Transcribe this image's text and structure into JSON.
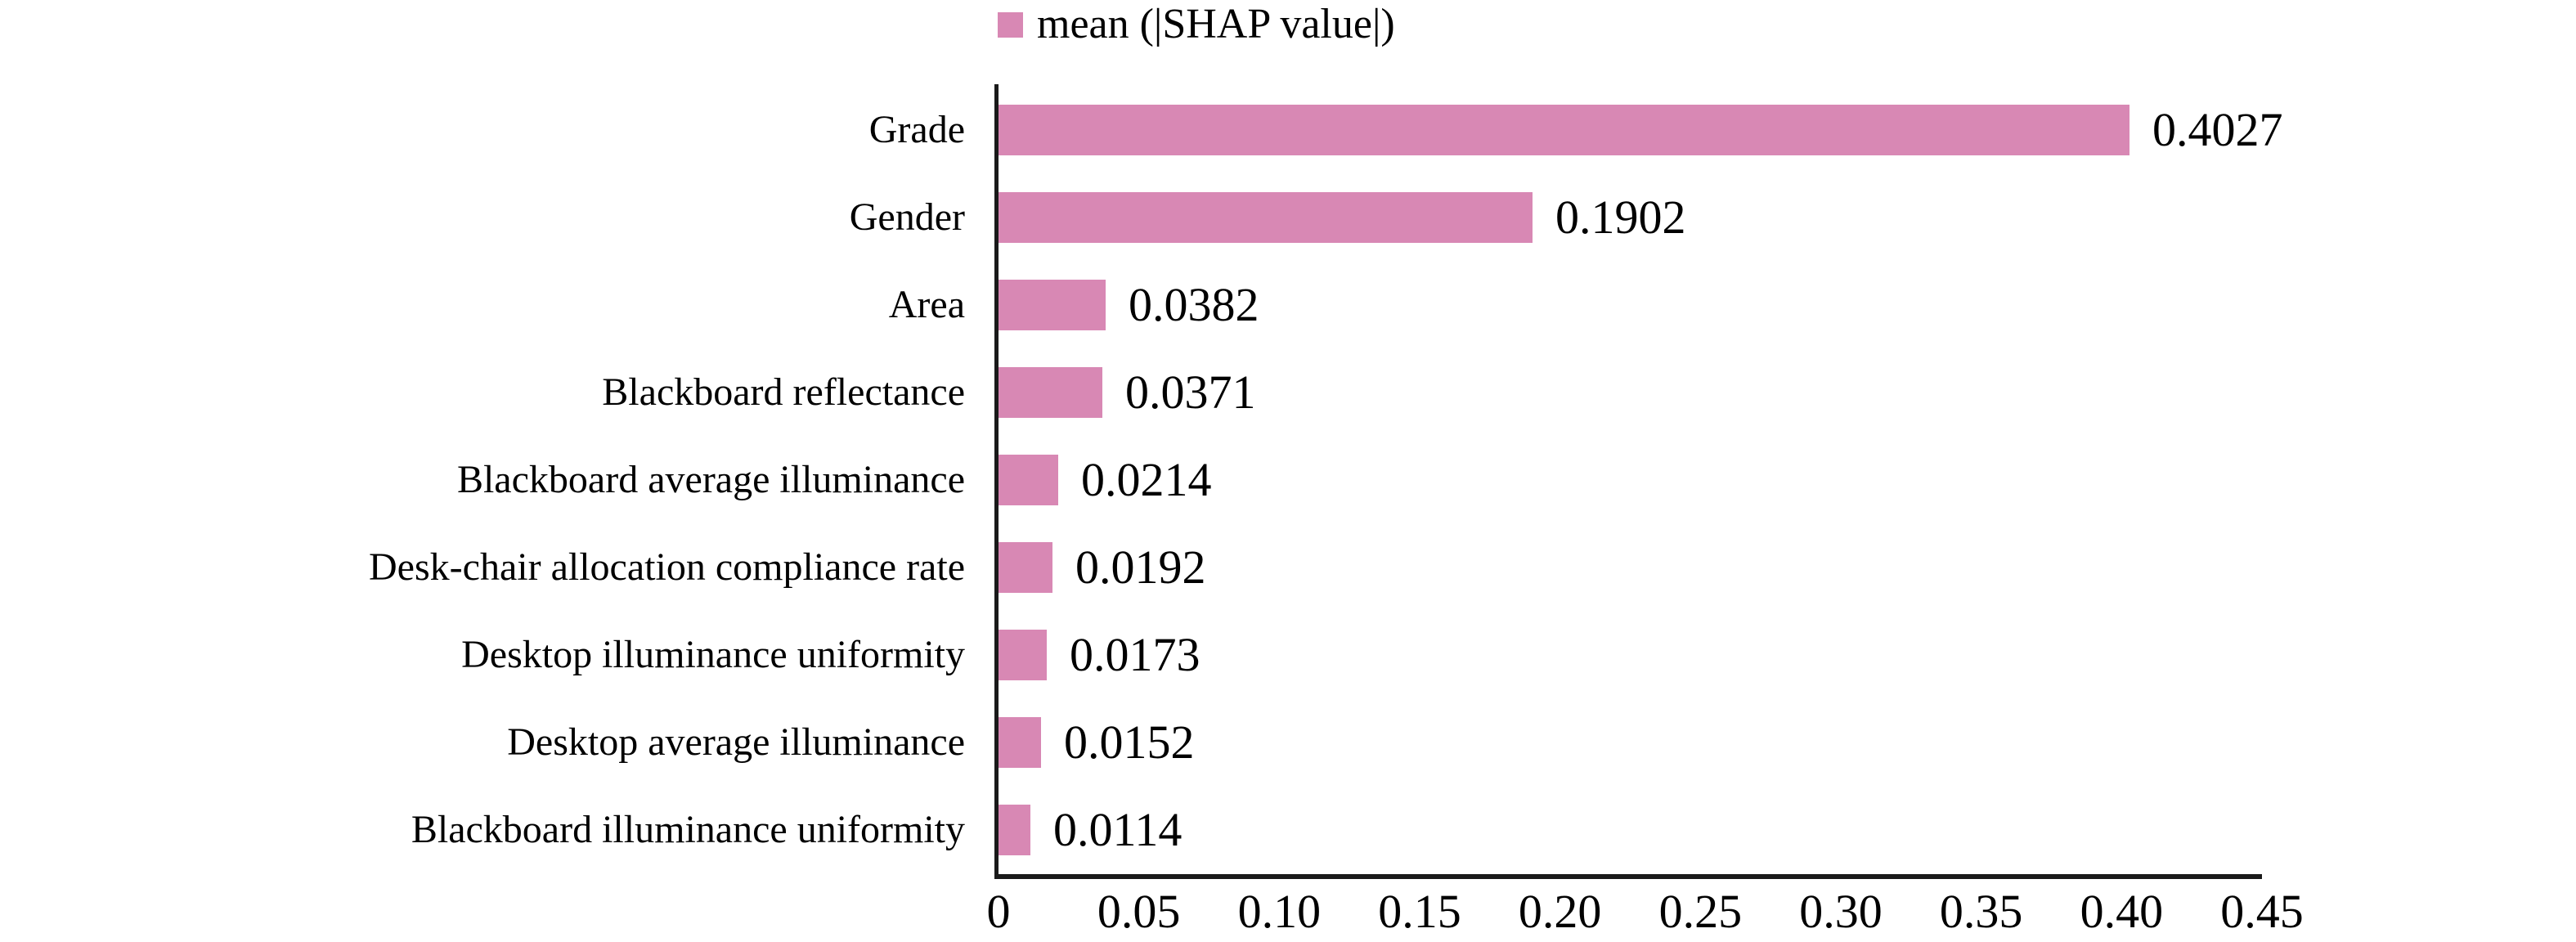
{
  "chart_data": {
    "type": "bar",
    "orientation": "horizontal",
    "title": "",
    "xlabel": "",
    "ylabel": "",
    "legend_label": "mean (|SHAP value|)",
    "legend_position": "top-center",
    "grid": false,
    "categories": [
      "Grade",
      "Gender",
      "Area",
      "Blackboard reflectance",
      "Blackboard average illuminance",
      "Desk-chair allocation compliance rate",
      "Desktop illuminance uniformity",
      "Desktop average illuminance",
      "Blackboard illuminance uniformity"
    ],
    "values": [
      0.4027,
      0.1902,
      0.0382,
      0.0371,
      0.0214,
      0.0192,
      0.0173,
      0.0152,
      0.0114
    ],
    "value_labels": [
      "0.4027",
      "0.1902",
      "0.0382",
      "0.0371",
      "0.0214",
      "0.0192",
      "0.0173",
      "0.0152",
      "0.0114"
    ],
    "xlim": [
      0,
      0.45
    ],
    "xtick_values": [
      0,
      0.05,
      0.1,
      0.15,
      0.2,
      0.25,
      0.3,
      0.35,
      0.4,
      0.45
    ],
    "xtick_labels": [
      "0",
      "0.05",
      "0.10",
      "0.15",
      "0.20",
      "0.25",
      "0.30",
      "0.35",
      "0.40",
      "0.45"
    ],
    "colors": {
      "bar": "#d888b4",
      "axis": "#1a1a1a",
      "text": "#000000"
    }
  }
}
